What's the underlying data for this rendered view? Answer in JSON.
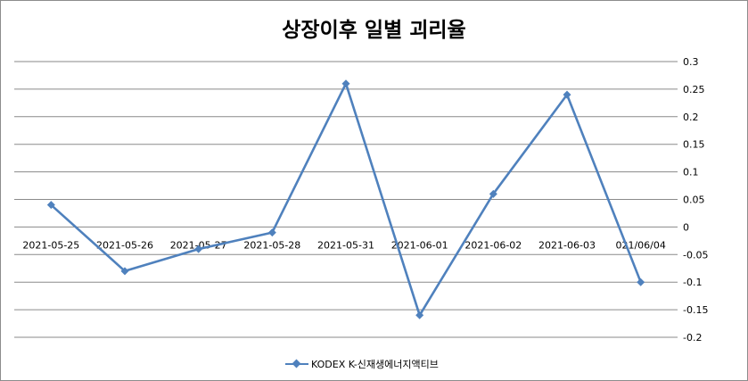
{
  "chart_data": {
    "type": "line",
    "title": "상장이후 일별 괴리율",
    "categories": [
      "2021-05-25",
      "2021-05-26",
      "2021-05-27",
      "2021-05-28",
      "2021-05-31",
      "2021-06-01",
      "2021-06-02",
      "2021-06-03",
      "021/06/04"
    ],
    "series": [
      {
        "name": "KODEX K-신재생에너지액티브",
        "color": "#4f81bd",
        "values": [
          0.04,
          -0.08,
          -0.04,
          -0.01,
          0.26,
          -0.16,
          0.06,
          0.24,
          -0.1
        ]
      }
    ],
    "ylim": [
      -0.2,
      0.3
    ],
    "yticks": [
      "0.3",
      "0.25",
      "0.2",
      "0.15",
      "0.1",
      "0.05",
      "0",
      "-0.05",
      "-0.1",
      "-0.15",
      "-0.2"
    ],
    "y_axis_side": "right",
    "grid": true,
    "legend_position": "bottom"
  }
}
